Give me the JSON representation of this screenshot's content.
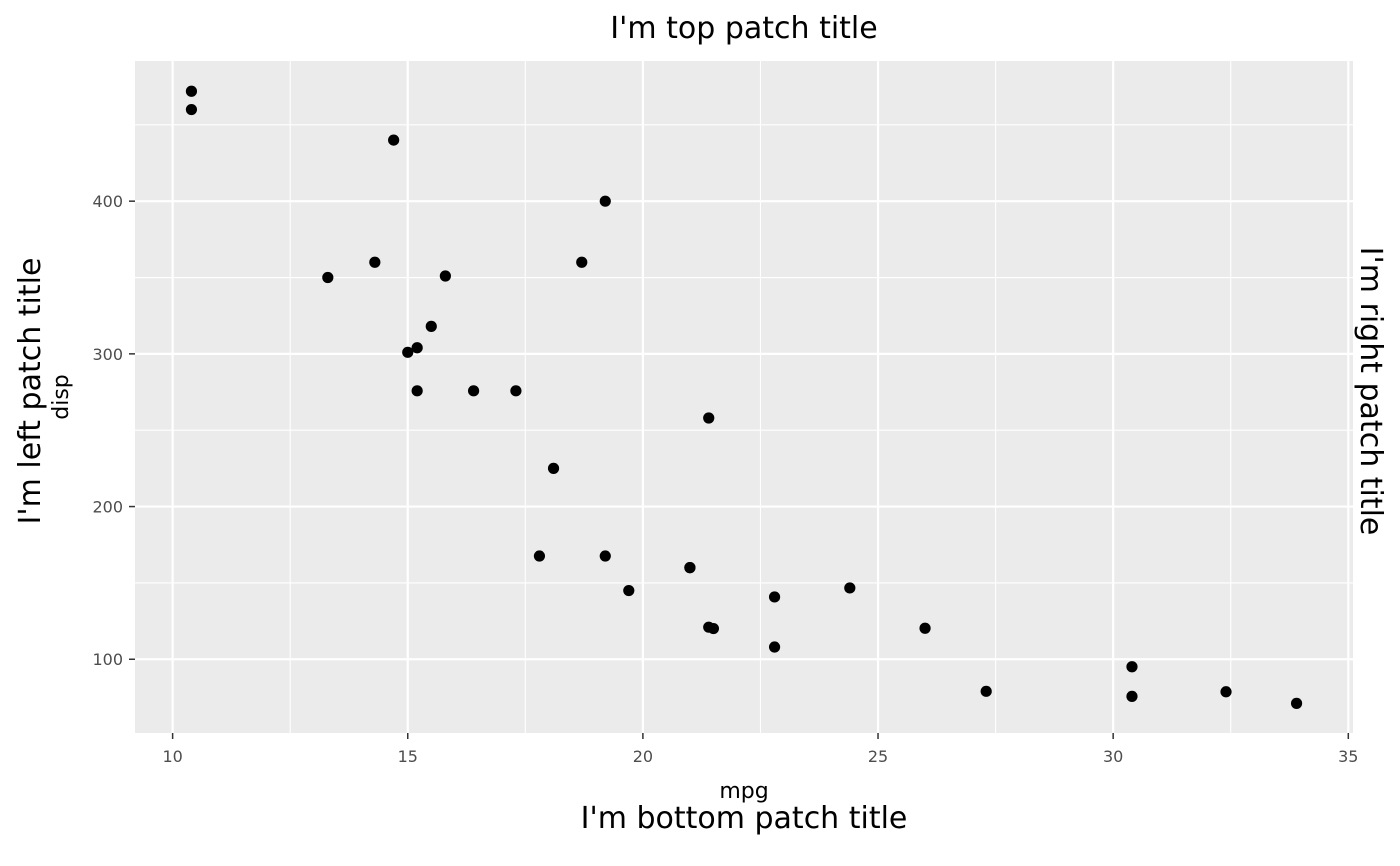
{
  "chart_data": {
    "type": "scatter",
    "patch_titles": {
      "top": "I'm top patch title",
      "left": "I'm left patch title",
      "right": "I'm right patch title",
      "bottom": "I'm bottom patch title"
    },
    "xlabel": "mpg",
    "ylabel": "disp",
    "xlim": [
      9.2,
      35.1
    ],
    "ylim": [
      51.7,
      491.8
    ],
    "x_ticks": [
      10,
      15,
      20,
      25,
      30,
      35
    ],
    "y_ticks": [
      100,
      200,
      300,
      400
    ],
    "x_minor": [
      12.5,
      17.5,
      22.5,
      27.5,
      32.5
    ],
    "y_minor": [
      50,
      150,
      250,
      350,
      450
    ],
    "grid": true,
    "panel_color": "#ebebeb",
    "grid_color": "#ffffff",
    "point_color": "#000000",
    "points": [
      [
        21.0,
        160
      ],
      [
        21.0,
        160
      ],
      [
        22.8,
        108
      ],
      [
        21.4,
        258
      ],
      [
        18.7,
        360
      ],
      [
        18.1,
        225
      ],
      [
        14.3,
        360
      ],
      [
        24.4,
        146.7
      ],
      [
        22.8,
        140.8
      ],
      [
        19.2,
        167.6
      ],
      [
        17.8,
        167.6
      ],
      [
        16.4,
        275.8
      ],
      [
        17.3,
        275.8
      ],
      [
        15.2,
        275.8
      ],
      [
        10.4,
        472
      ],
      [
        10.4,
        460
      ],
      [
        14.7,
        440
      ],
      [
        32.4,
        78.7
      ],
      [
        30.4,
        75.7
      ],
      [
        33.9,
        71.1
      ],
      [
        21.5,
        120.1
      ],
      [
        15.5,
        318
      ],
      [
        15.2,
        304
      ],
      [
        13.3,
        350
      ],
      [
        19.2,
        400
      ],
      [
        27.3,
        79
      ],
      [
        26.0,
        120.3
      ],
      [
        30.4,
        95.1
      ],
      [
        15.8,
        351
      ],
      [
        19.7,
        145
      ],
      [
        15.0,
        301
      ],
      [
        21.4,
        121
      ]
    ]
  }
}
